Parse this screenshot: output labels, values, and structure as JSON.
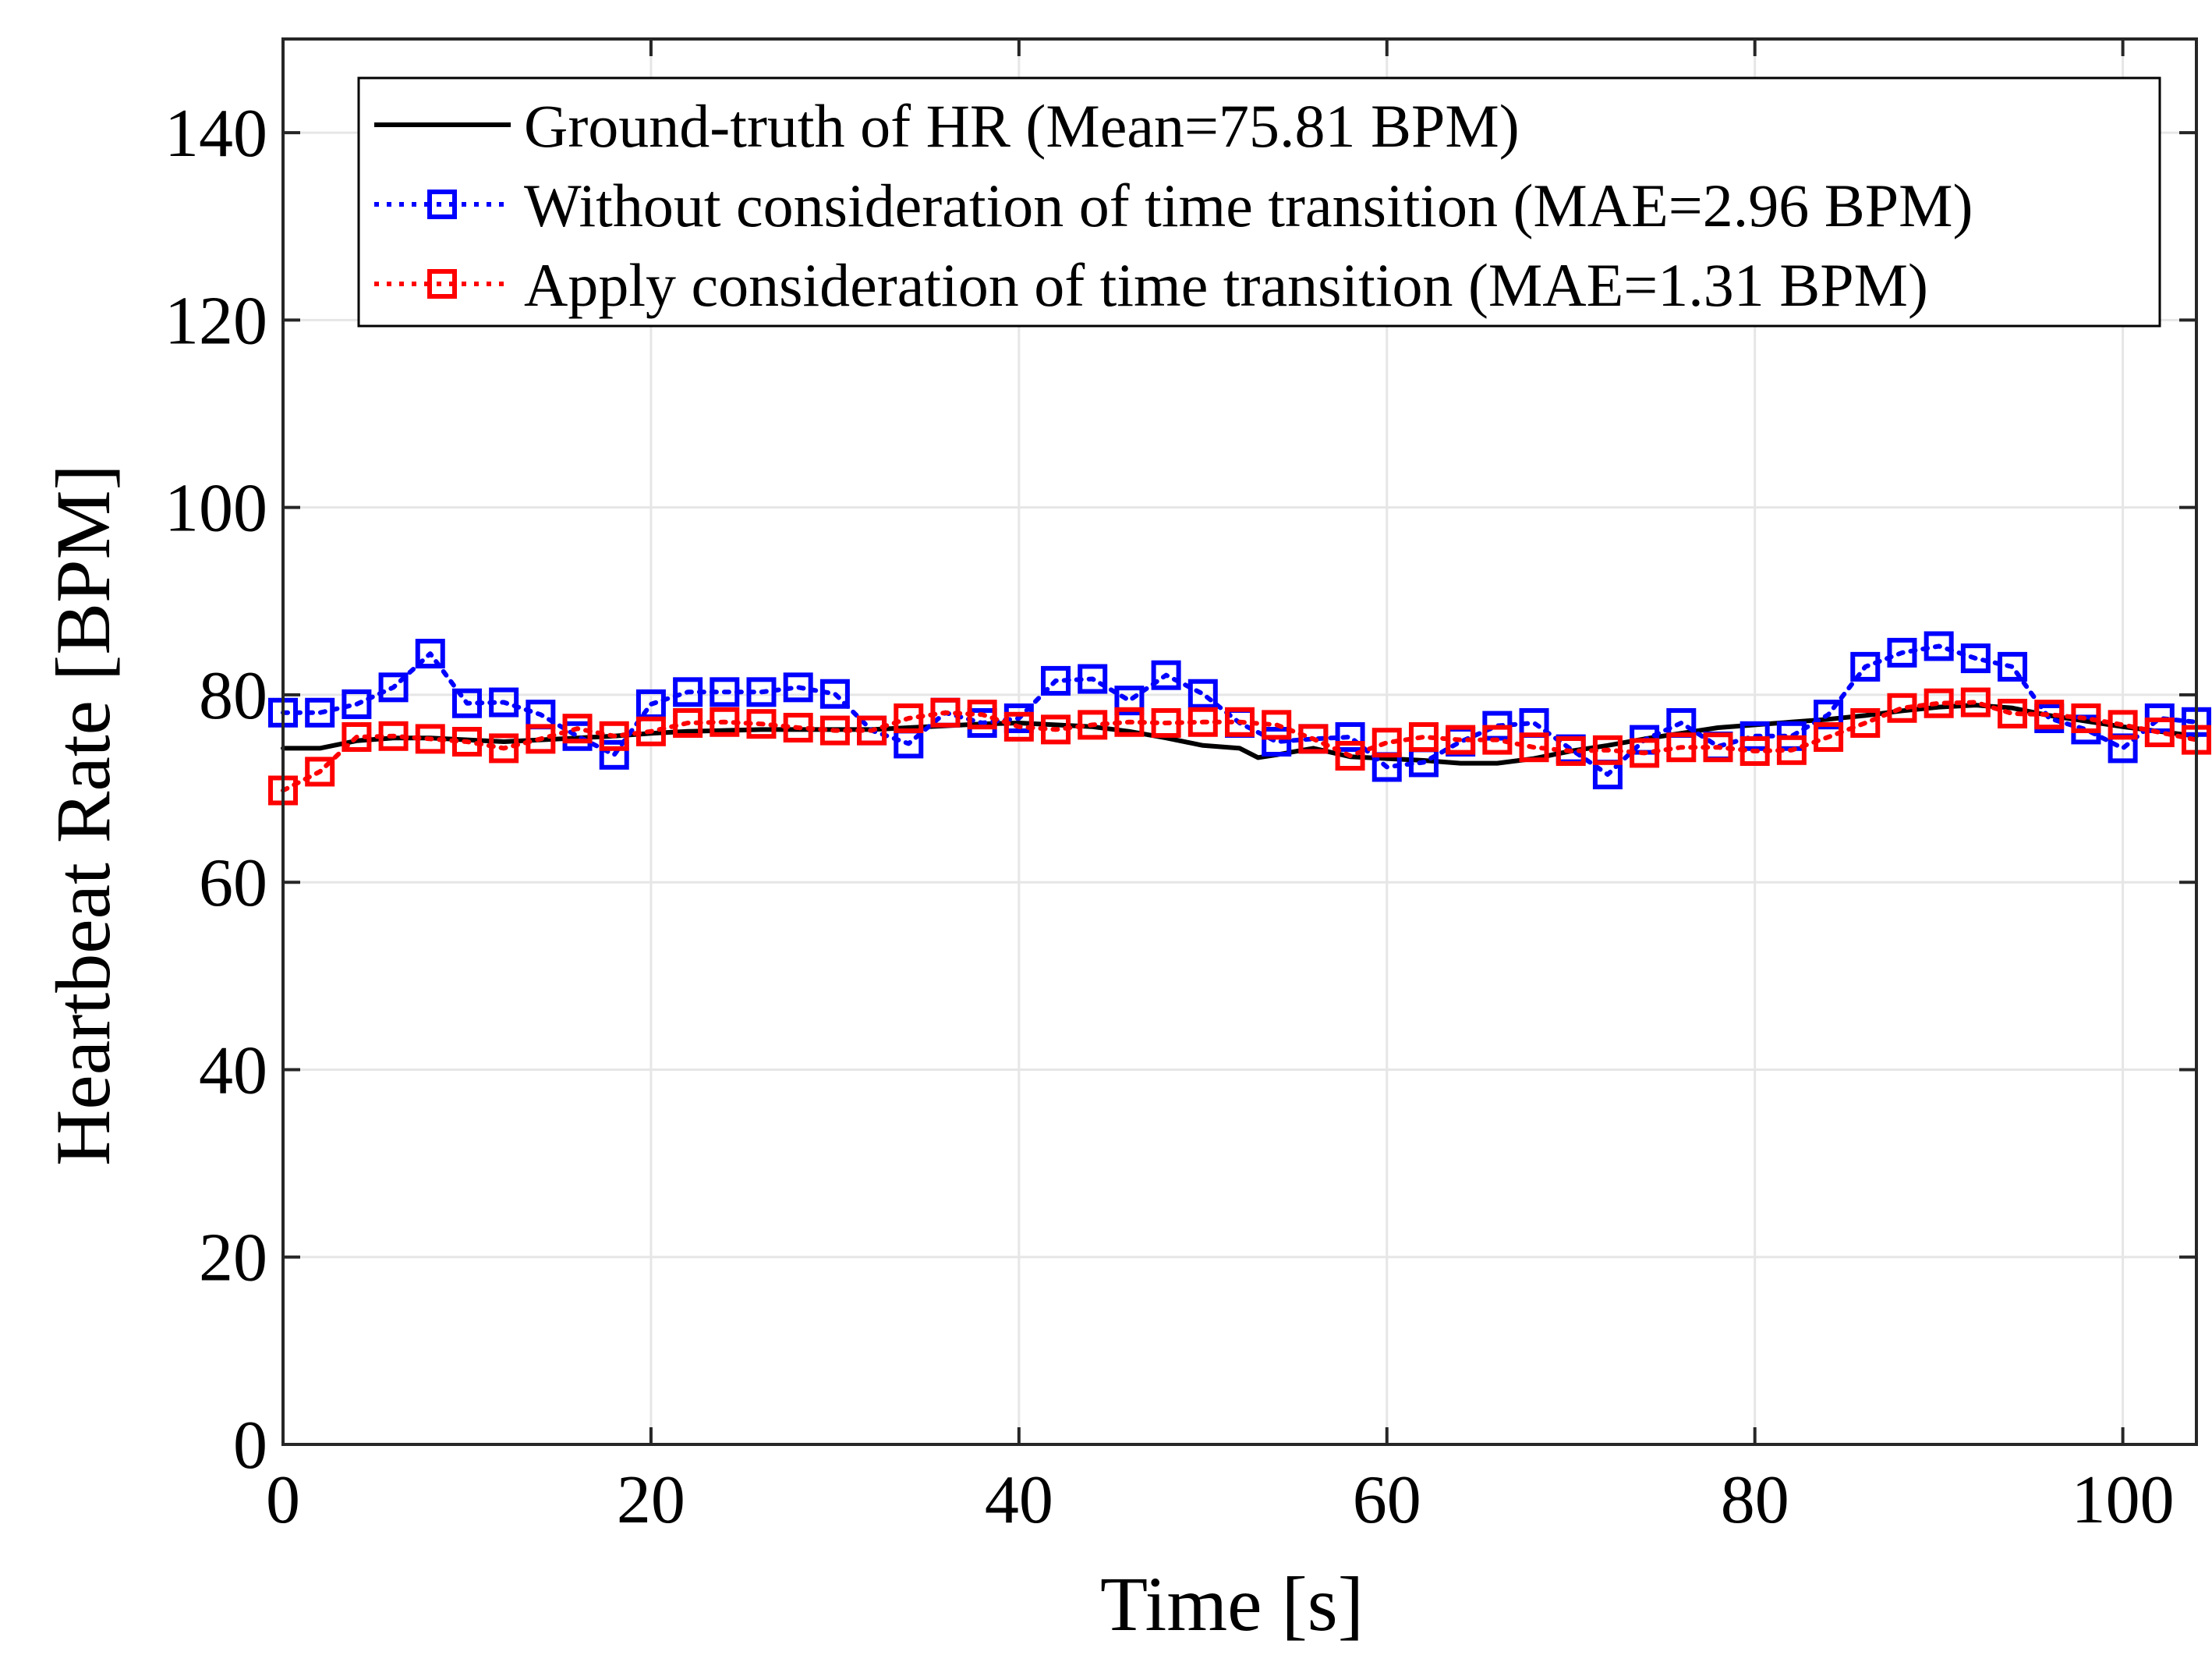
{
  "chart_data": {
    "type": "line",
    "title": "",
    "xlabel": "Time [s]",
    "ylabel": "Heartbeat Rate [BPM]",
    "xlim": [
      0,
      104
    ],
    "ylim": [
      0,
      150
    ],
    "xticks": [
      0,
      20,
      40,
      60,
      80,
      100
    ],
    "yticks": [
      0,
      20,
      40,
      60,
      80,
      100,
      120,
      140
    ],
    "grid": true,
    "legend_position": "top",
    "series": [
      {
        "name": "Ground-truth of HR (Mean=75.81 BPM)",
        "color": "#000000",
        "style": "solid",
        "marker": "none",
        "x": [
          0,
          2,
          4,
          6,
          8,
          10,
          12,
          14,
          16,
          18,
          20,
          22,
          24,
          26,
          28,
          30,
          32,
          34,
          36,
          38,
          40,
          42,
          44,
          46,
          48,
          50,
          52,
          53,
          54,
          56,
          58,
          60,
          62,
          64,
          66,
          68,
          70,
          72,
          74,
          76,
          78,
          80,
          82,
          84,
          86,
          88,
          90,
          92,
          94,
          96,
          98,
          100,
          102,
          104
        ],
        "y": [
          74.3,
          74.3,
          75.1,
          75.4,
          75.4,
          75.2,
          75.0,
          75.2,
          75.4,
          75.6,
          75.9,
          76.1,
          76.2,
          76.3,
          76.3,
          76.3,
          76.3,
          76.5,
          76.7,
          76.9,
          77.0,
          76.8,
          76.6,
          76.1,
          75.4,
          74.6,
          74.3,
          73.3,
          73.6,
          74.3,
          73.4,
          73.2,
          73.0,
          72.7,
          72.7,
          73.2,
          74.0,
          74.6,
          75.3,
          75.9,
          76.5,
          76.8,
          77.1,
          77.4,
          77.8,
          78.3,
          78.7,
          78.9,
          78.6,
          77.8,
          77.2,
          76.6,
          76.1,
          75.6
        ]
      },
      {
        "name": "Without consideration of time transition (MAE=2.96 BPM)",
        "color": "#0000ff",
        "style": "dotted",
        "marker": "square",
        "x": [
          0,
          2,
          4,
          6,
          8,
          10,
          12,
          14,
          16,
          18,
          20,
          22,
          24,
          26,
          28,
          30,
          32,
          34,
          36,
          38,
          40,
          42,
          44,
          46,
          48,
          50,
          52,
          54,
          56,
          58,
          60,
          62,
          64,
          66,
          68,
          70,
          72,
          74,
          76,
          78,
          80,
          82,
          84,
          86,
          88,
          90,
          92,
          94,
          96,
          98,
          100,
          102,
          104
        ],
        "y": [
          78.1,
          78.1,
          79.0,
          80.8,
          84.4,
          79.1,
          79.2,
          77.9,
          75.6,
          73.6,
          79.0,
          80.3,
          80.3,
          80.3,
          80.8,
          80.1,
          76.2,
          74.8,
          78.1,
          77.0,
          77.5,
          81.5,
          81.7,
          79.4,
          82.1,
          80.1,
          77.0,
          75.0,
          75.3,
          75.5,
          72.3,
          72.8,
          75.0,
          76.7,
          77.0,
          74.2,
          71.5,
          75.2,
          77.0,
          74.5,
          75.6,
          75.6,
          77.9,
          83.0,
          84.5,
          85.2,
          83.9,
          83.0,
          77.5,
          76.3,
          74.3,
          77.5,
          77.1
        ]
      },
      {
        "name": "Apply consideration of time transition (MAE=1.31 BPM)",
        "color": "#ff0000",
        "style": "dotted",
        "marker": "square",
        "x": [
          0,
          2,
          4,
          6,
          8,
          10,
          12,
          14,
          16,
          18,
          20,
          22,
          24,
          26,
          28,
          30,
          32,
          34,
          36,
          38,
          40,
          42,
          44,
          46,
          48,
          50,
          52,
          54,
          56,
          58,
          60,
          62,
          64,
          66,
          68,
          70,
          72,
          74,
          76,
          78,
          80,
          82,
          84,
          86,
          88,
          90,
          92,
          94,
          96,
          98,
          100,
          102,
          104
        ],
        "y": [
          69.8,
          71.8,
          75.5,
          75.6,
          75.3,
          75.0,
          74.3,
          75.3,
          76.4,
          75.6,
          76.1,
          77.0,
          77.1,
          76.9,
          76.5,
          76.2,
          76.2,
          77.5,
          78.1,
          77.9,
          76.6,
          76.3,
          76.8,
          77.1,
          77.0,
          77.1,
          77.1,
          76.8,
          75.3,
          73.5,
          74.9,
          75.5,
          75.2,
          75.2,
          74.4,
          74.0,
          74.1,
          73.8,
          74.4,
          74.4,
          74.0,
          74.1,
          75.5,
          77.0,
          78.6,
          79.1,
          79.2,
          78.0,
          77.9,
          77.5,
          76.8,
          76.0,
          75.2
        ]
      }
    ]
  }
}
